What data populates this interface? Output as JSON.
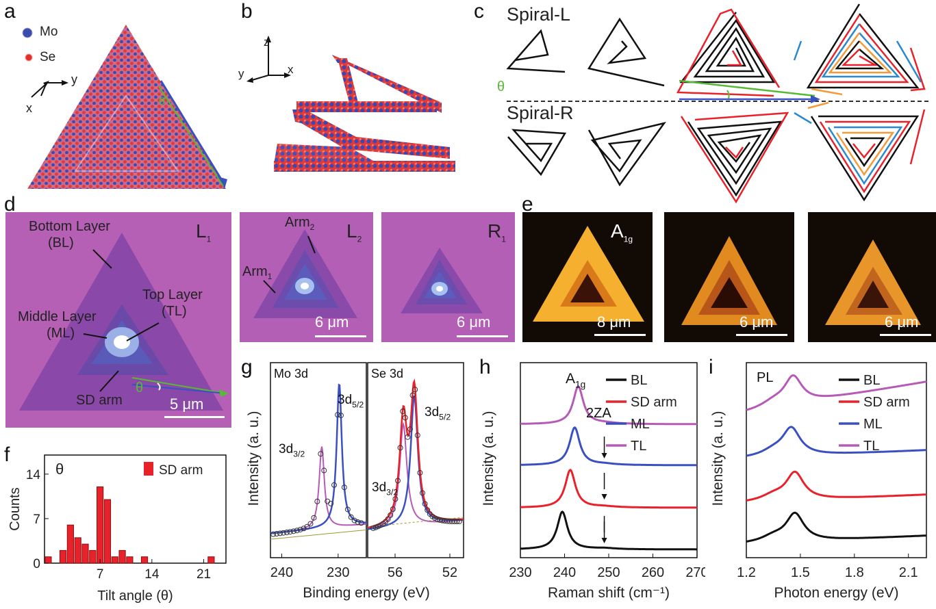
{
  "panels": {
    "a": {
      "letter": "a",
      "legend": [
        "Mo",
        "Se"
      ],
      "axes": {
        "y": "y",
        "x": "x"
      },
      "angle": "θ"
    },
    "b": {
      "letter": "b",
      "axes": {
        "z": "z",
        "y": "y",
        "x": "x"
      }
    },
    "c": {
      "letter": "c",
      "spiral_l": "Spiral-L",
      "spiral_r": "Spiral-R",
      "angle": "θ"
    },
    "d": {
      "letter": "d",
      "main": {
        "tag": "L",
        "tag_sub": "1",
        "bottom_layer": "Bottom Layer",
        "bl": "(BL)",
        "top_layer": "Top Layer",
        "tl": "(TL)",
        "middle_layer": "Middle Layer",
        "ml": "(ML)",
        "sd_arm": "SD arm",
        "angle": "θ",
        "scale": "5 μm"
      },
      "l2": {
        "tag": "L",
        "tag_sub": "2",
        "arm2": "Arm",
        "arm2_sub": "2",
        "arm1": "Arm",
        "arm1_sub": "1",
        "scale": "6 μm"
      },
      "r1": {
        "tag": "R",
        "tag_sub": "1",
        "scale": "6 μm"
      }
    },
    "e": {
      "letter": "e",
      "mode": "A",
      "mode_sub": "1g",
      "scales": [
        "8 μm",
        "6 μm",
        "6 μm"
      ]
    },
    "f": {
      "letter": "f"
    },
    "g": {
      "letter": "g"
    },
    "h": {
      "letter": "h"
    },
    "i": {
      "letter": "i"
    }
  },
  "colors": {
    "mo": "#3b4bb0",
    "se": "#e0302a",
    "green": "#55bb33",
    "blue": "#3a50c0",
    "pink": "#b65ab8",
    "red": "#e8212a",
    "black": "#111111",
    "orange": "#f39a3a",
    "lightblue": "#2a88d0"
  },
  "chart_data": [
    {
      "id": "f",
      "type": "bar",
      "legend": [
        "SD arm"
      ],
      "inset": "θ",
      "xlabel": "Tilt angle (θ)",
      "ylabel": "Counts",
      "xticks": [
        7,
        14,
        21
      ],
      "xtick_labels": [
        "7",
        "14",
        "21"
      ],
      "yticks": [
        0,
        7,
        14
      ],
      "ylim": [
        0,
        17
      ],
      "xlim": [
        -0.5,
        24
      ],
      "x": [
        0,
        2,
        3,
        4,
        5,
        6,
        7,
        8,
        9,
        10,
        11,
        13,
        22
      ],
      "values": [
        1,
        2,
        6,
        4,
        3,
        2,
        12,
        10,
        1,
        2,
        1,
        1,
        1
      ]
    },
    {
      "id": "g_mo",
      "type": "line",
      "title": "Mo 3d",
      "xlabel": "Binding energy (eV)",
      "ylabel": "Intensity (a. u.)",
      "xtick_labels": [
        "240",
        "230"
      ],
      "peaks": [
        {
          "label": "3d",
          "sub": "3/2",
          "x": 232.9
        },
        {
          "label": "3d",
          "sub": "5/2",
          "x": 229.8
        }
      ]
    },
    {
      "id": "g_se",
      "type": "line",
      "title": "Se 3d",
      "xtick_labels": [
        "56",
        "52"
      ],
      "peaks": [
        {
          "label": "3d",
          "sub": "3/2",
          "x": 55.4
        },
        {
          "label": "3d",
          "sub": "5/2",
          "x": 54.6
        }
      ]
    },
    {
      "id": "h",
      "type": "line",
      "xlabel": "Raman shift (cm⁻¹)",
      "ylabel": "Intensity (a. u.)",
      "xtick_labels": [
        "230",
        "240",
        "250",
        "260",
        "270"
      ],
      "xlim": [
        230,
        270
      ],
      "annotations": {
        "a1g": "A",
        "a1g_sub": "1g",
        "twoZA": "2ZA"
      },
      "series": [
        {
          "name": "BL",
          "peak": 239.5
        },
        {
          "name": "SD arm",
          "peak": 241.3
        },
        {
          "name": "ML",
          "peak": 242.3
        },
        {
          "name": "TL",
          "peak": 243.1
        }
      ]
    },
    {
      "id": "i",
      "type": "line",
      "title": "PL",
      "xlabel": "Photon energy (eV)",
      "ylabel": "Intensity (a. u.)",
      "xtick_labels": [
        "1.2",
        "1.5",
        "1.8",
        "2.1"
      ],
      "xlim": [
        1.2,
        2.2
      ],
      "series": [
        {
          "name": "BL",
          "peak": 1.47
        },
        {
          "name": "SD arm",
          "peak": 1.47
        },
        {
          "name": "ML",
          "peak": 1.45
        },
        {
          "name": "TL",
          "peak": 1.46
        }
      ]
    }
  ]
}
